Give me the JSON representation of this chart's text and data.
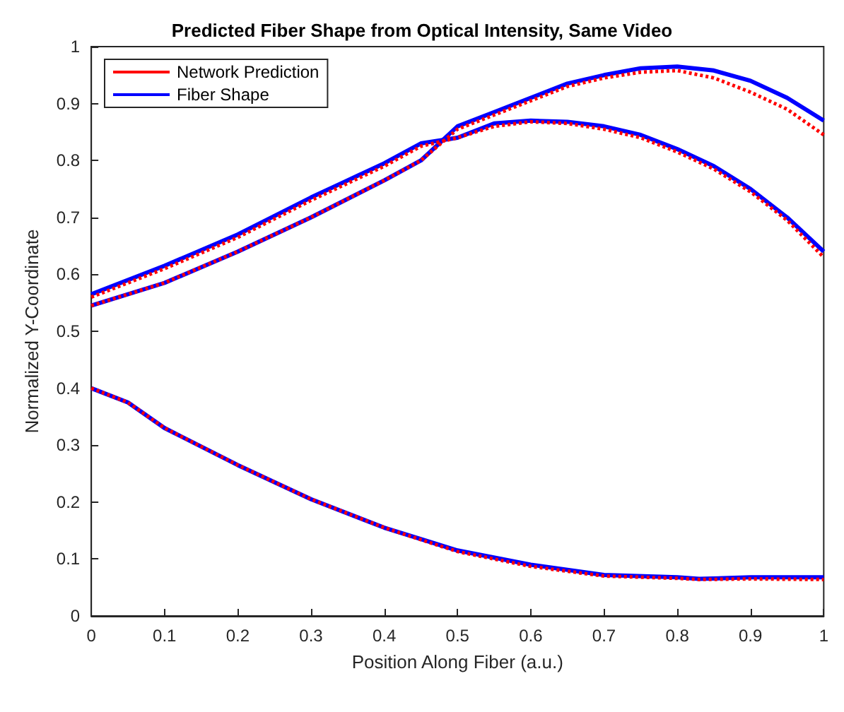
{
  "chart_data": {
    "type": "line",
    "title": "Predicted Fiber Shape from Optical Intensity, Same Video",
    "xlabel": "Position Along Fiber (a.u.)",
    "ylabel": "Normalized Y-Coordinate",
    "xlim": [
      0,
      1
    ],
    "ylim": [
      0,
      1
    ],
    "xticks": [
      0,
      0.1,
      0.2,
      0.3,
      0.4,
      0.5,
      0.6,
      0.7,
      0.8,
      0.9,
      1
    ],
    "yticks": [
      0,
      0.1,
      0.2,
      0.3,
      0.4,
      0.5,
      0.6,
      0.7,
      0.8,
      0.9,
      1
    ],
    "grid": false,
    "legend": "top left",
    "marker": "none",
    "series": [
      {
        "name": "Fiber Shape",
        "color": "#0000ff",
        "line_style": "solid",
        "x": [
          0,
          0.1,
          0.2,
          0.3,
          0.4,
          0.45,
          0.5,
          0.55,
          0.6,
          0.65,
          0.7,
          0.75,
          0.8,
          0.85,
          0.9,
          0.95,
          1
        ],
        "values": [
          0.565,
          0.615,
          0.67,
          0.735,
          0.795,
          0.83,
          0.84,
          0.865,
          0.87,
          0.868,
          0.86,
          0.845,
          0.82,
          0.79,
          0.75,
          0.7,
          0.64
        ]
      },
      {
        "color": "#0000ff",
        "line_style": "solid",
        "x": [
          0,
          0.1,
          0.2,
          0.3,
          0.4,
          0.45,
          0.5,
          0.55,
          0.6,
          0.65,
          0.7,
          0.75,
          0.8,
          0.85,
          0.9,
          0.95,
          1
        ],
        "values": [
          0.545,
          0.585,
          0.64,
          0.7,
          0.765,
          0.8,
          0.86,
          0.885,
          0.91,
          0.935,
          0.95,
          0.962,
          0.965,
          0.958,
          0.94,
          0.91,
          0.87
        ]
      },
      {
        "color": "#0000ff",
        "line_style": "solid",
        "x": [
          0,
          0.05,
          0.1,
          0.2,
          0.3,
          0.4,
          0.5,
          0.6,
          0.7,
          0.8,
          0.83,
          0.9,
          1
        ],
        "values": [
          0.4,
          0.375,
          0.33,
          0.265,
          0.205,
          0.155,
          0.115,
          0.09,
          0.072,
          0.068,
          0.065,
          0.068,
          0.068
        ]
      },
      {
        "name": "Network Prediction",
        "color": "#ff0000",
        "line_style": "dotted",
        "x": [
          0,
          0.1,
          0.2,
          0.3,
          0.4,
          0.45,
          0.5,
          0.55,
          0.6,
          0.65,
          0.7,
          0.75,
          0.8,
          0.85,
          0.9,
          0.95,
          1
        ],
        "values": [
          0.56,
          0.61,
          0.665,
          0.73,
          0.79,
          0.825,
          0.84,
          0.86,
          0.868,
          0.865,
          0.855,
          0.84,
          0.815,
          0.785,
          0.745,
          0.695,
          0.63
        ]
      },
      {
        "color": "#ff0000",
        "line_style": "dotted",
        "x": [
          0,
          0.1,
          0.2,
          0.3,
          0.4,
          0.45,
          0.5,
          0.55,
          0.6,
          0.65,
          0.7,
          0.75,
          0.8,
          0.85,
          0.9,
          0.95,
          1
        ],
        "values": [
          0.545,
          0.585,
          0.64,
          0.7,
          0.765,
          0.8,
          0.855,
          0.88,
          0.905,
          0.93,
          0.945,
          0.955,
          0.958,
          0.945,
          0.92,
          0.89,
          0.845
        ]
      },
      {
        "color": "#ff0000",
        "line_style": "dotted",
        "x": [
          0,
          0.05,
          0.1,
          0.2,
          0.3,
          0.4,
          0.5,
          0.6,
          0.7,
          0.8,
          0.83,
          0.9,
          1
        ],
        "values": [
          0.4,
          0.375,
          0.33,
          0.265,
          0.205,
          0.155,
          0.113,
          0.087,
          0.07,
          0.066,
          0.064,
          0.065,
          0.064
        ]
      }
    ]
  }
}
